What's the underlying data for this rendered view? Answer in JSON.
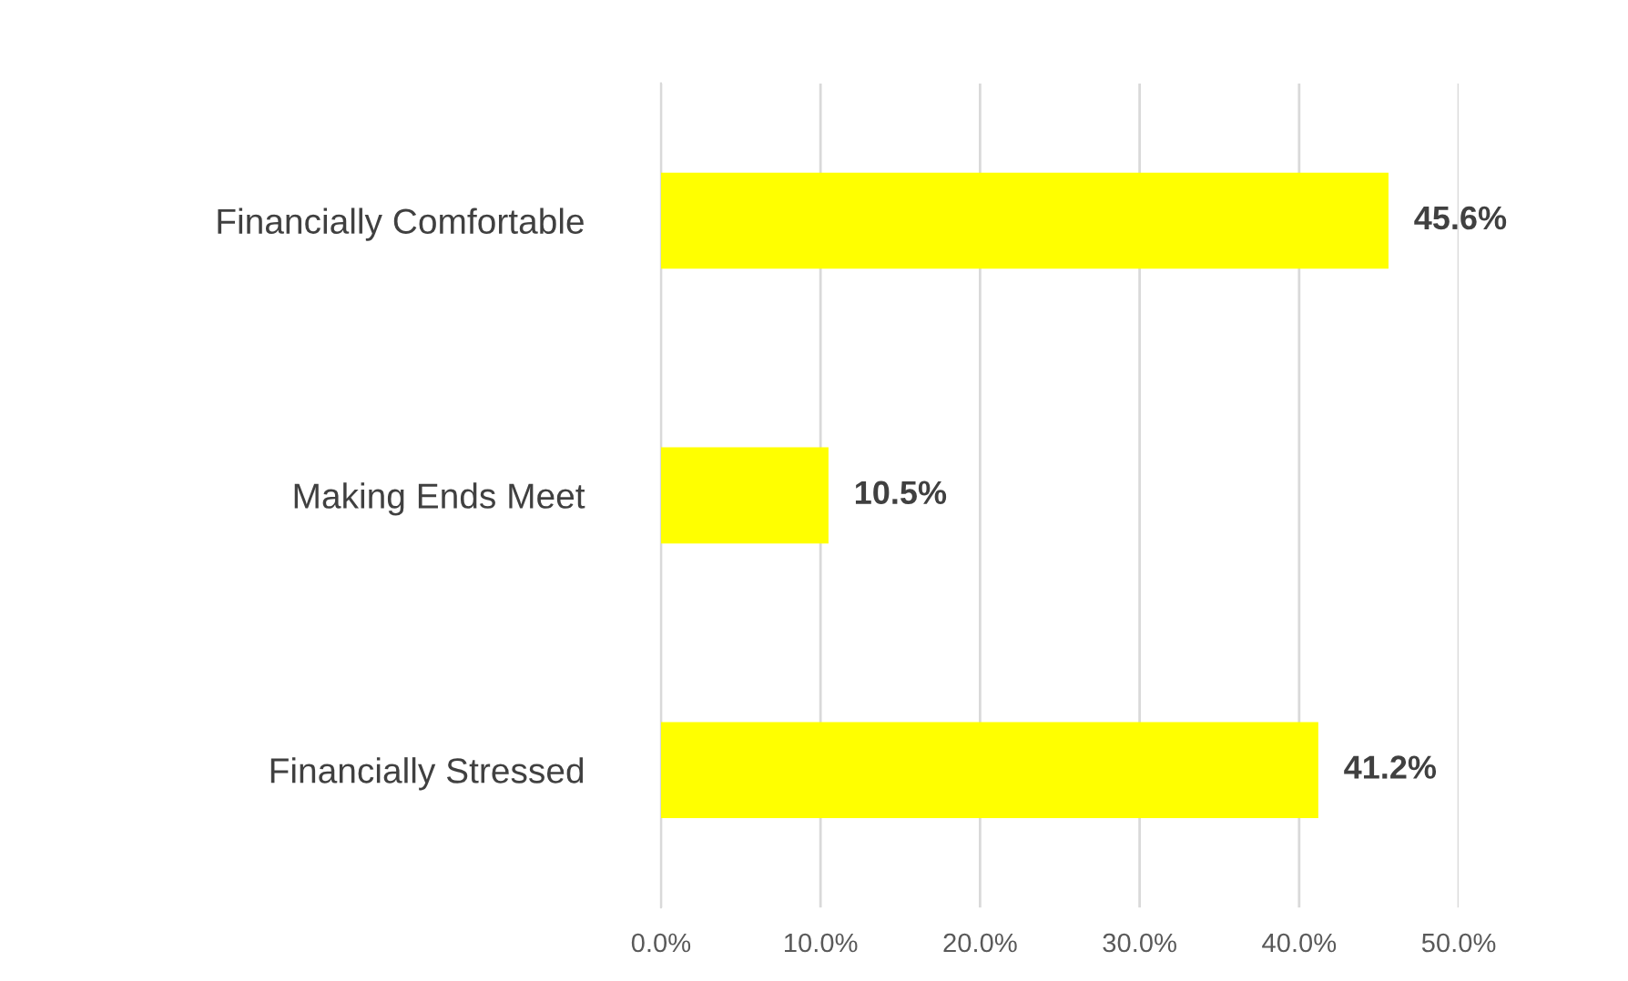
{
  "chart_data": {
    "type": "bar",
    "orientation": "horizontal",
    "categories": [
      "Financially Comfortable",
      "Making Ends Meet",
      "Financially Stressed"
    ],
    "values": [
      45.6,
      10.5,
      41.2
    ],
    "color": "#ffff00",
    "value_labels": [
      "45.6%",
      "10.5%",
      "41.2%"
    ],
    "xlim": [
      0,
      50
    ],
    "xticks": [
      {
        "value": 0,
        "label": "0.0%"
      },
      {
        "value": 10,
        "label": "10.0%"
      },
      {
        "value": 20,
        "label": "20.0%"
      },
      {
        "value": 30,
        "label": "30.0%"
      },
      {
        "value": 40,
        "label": "40.0%"
      },
      {
        "value": 50,
        "label": "50.0%"
      }
    ],
    "grid": "x"
  }
}
